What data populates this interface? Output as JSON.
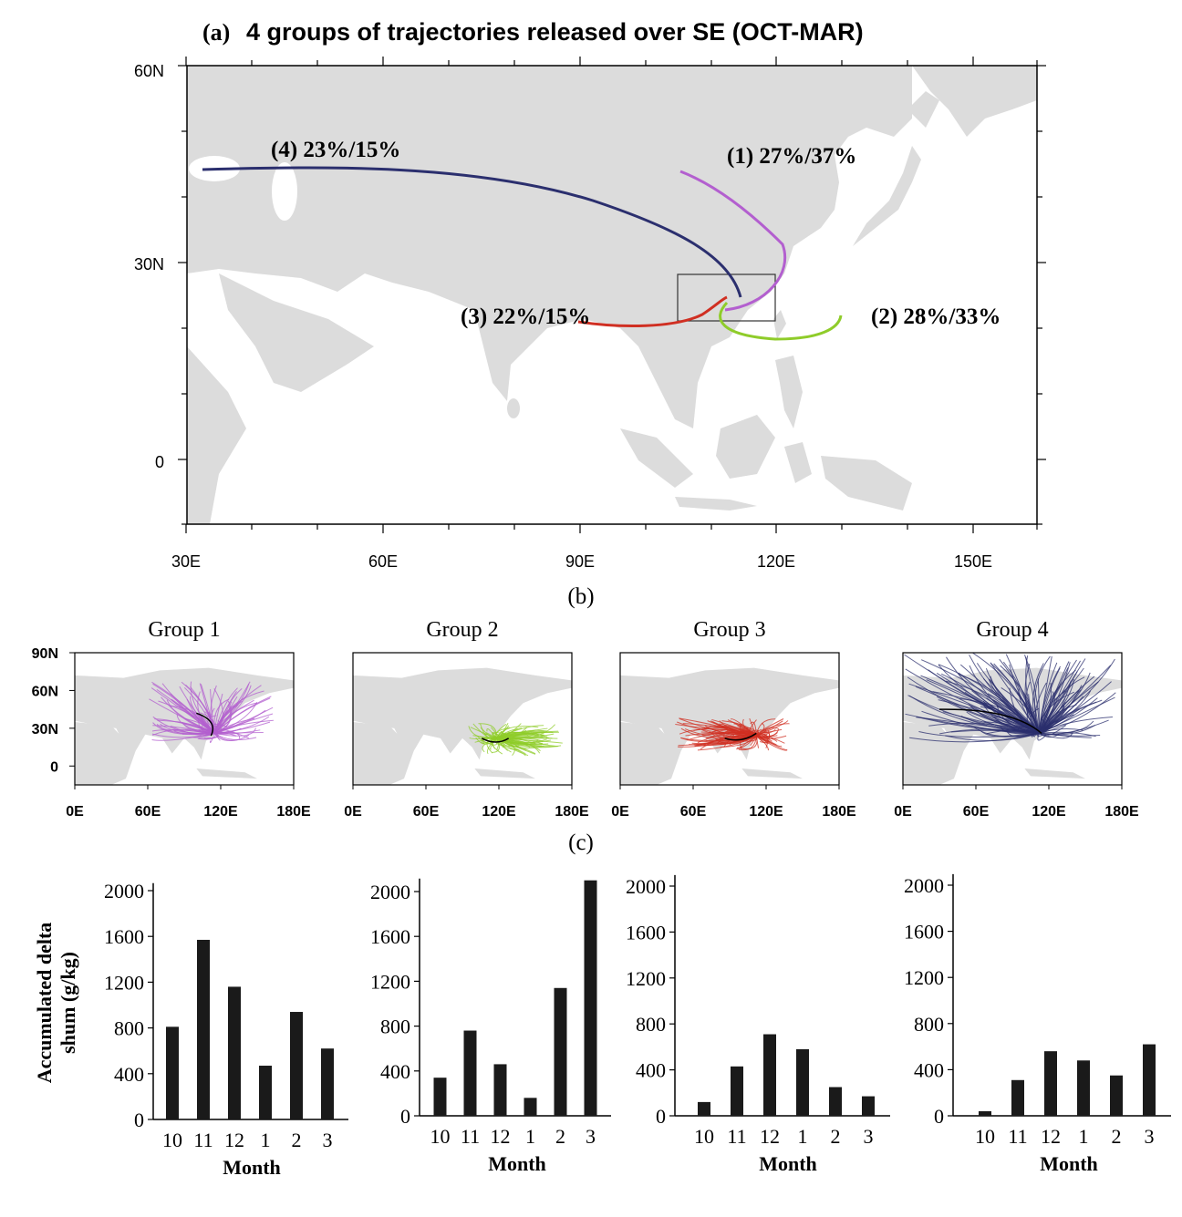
{
  "panel_a": {
    "label": "(a)",
    "title": "4 groups of trajectories released over SE (OCT-MAR)",
    "lat_ticks": [
      "60N",
      "30N",
      "0"
    ],
    "lon_ticks": [
      "30E",
      "60E",
      "90E",
      "120E",
      "150E"
    ],
    "groups": [
      {
        "id": 1,
        "label": "(1)  27%/37%",
        "color": "#b35fcf"
      },
      {
        "id": 2,
        "label": "(2) 28%/33%",
        "color": "#8fcc2a"
      },
      {
        "id": 3,
        "label": "(3) 22%/15%",
        "color": "#d02f22"
      },
      {
        "id": 4,
        "label": "(4) 23%/15%",
        "color": "#2b2f6e"
      }
    ]
  },
  "panel_b": {
    "label": "(b)",
    "lat_ticks": [
      "90N",
      "60N",
      "30N",
      "0"
    ],
    "lon_ticks": [
      "0E",
      "60E",
      "120E",
      "180E"
    ],
    "titles": [
      "Group 1",
      "Group 2",
      "Group 3",
      "Group 4"
    ],
    "colors": [
      "#b35fcf",
      "#8fcc2a",
      "#d02f22",
      "#2b2f6e"
    ]
  },
  "panel_c": {
    "label": "(c)",
    "ylabel_line1": "Accumulated delta",
    "ylabel_line2": "shum (g/kg)",
    "xlabel": "Month",
    "y_ticks": [
      "0",
      "400",
      "800",
      "1200",
      "1600",
      "2000"
    ],
    "bar_color": "#1a1a1a"
  },
  "chart_data": [
    {
      "type": "bar",
      "title": "Group 1",
      "categories": [
        "10",
        "11",
        "12",
        "1",
        "2",
        "3"
      ],
      "values": [
        810,
        1570,
        1160,
        470,
        940,
        620
      ],
      "xlabel": "Month",
      "ylabel": "Accumulated delta shum (g/kg)",
      "ylim": [
        0,
        2050
      ]
    },
    {
      "type": "bar",
      "title": "Group 2",
      "categories": [
        "10",
        "11",
        "12",
        "1",
        "2",
        "3"
      ],
      "values": [
        340,
        760,
        460,
        160,
        1140,
        2100
      ],
      "xlabel": "Month",
      "ylabel": "",
      "ylim": [
        0,
        2100
      ]
    },
    {
      "type": "bar",
      "title": "Group 3",
      "categories": [
        "10",
        "11",
        "12",
        "1",
        "2",
        "3"
      ],
      "values": [
        120,
        430,
        710,
        580,
        250,
        170
      ],
      "xlabel": "Month",
      "ylabel": "",
      "ylim": [
        0,
        2080
      ]
    },
    {
      "type": "bar",
      "title": "Group 4",
      "categories": [
        "10",
        "11",
        "12",
        "1",
        "2",
        "3"
      ],
      "values": [
        40,
        310,
        560,
        480,
        350,
        620
      ],
      "xlabel": "Month",
      "ylabel": "",
      "ylim": [
        0,
        2080
      ]
    }
  ]
}
